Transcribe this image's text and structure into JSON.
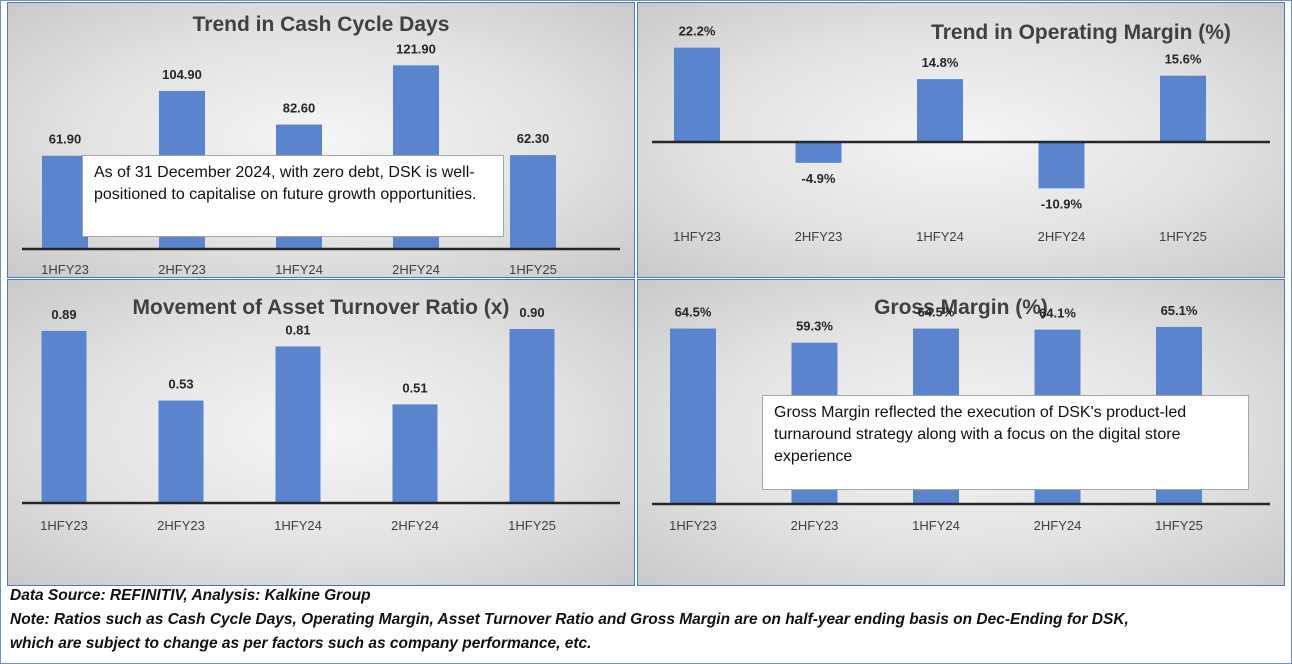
{
  "colors": {
    "bar": "#5b84cf",
    "axis": "#262626",
    "label": "#404040",
    "panel_border": "#4a78c8"
  },
  "chart_data": [
    {
      "type": "bar",
      "title": "Trend in Cash Cycle Days",
      "categories": [
        "1HFY23",
        "2HFY23",
        "1HFY24",
        "2HFY24",
        "1HFY25"
      ],
      "values": [
        61.9,
        104.9,
        82.6,
        121.9,
        62.3
      ],
      "data_labels": [
        "61.90",
        "104.90",
        "82.60",
        "121.90",
        "62.30"
      ],
      "ylim": [
        0,
        150
      ],
      "grid": false,
      "callout": "As of 31 December 2024, with zero debt, DSK is well-positioned to capitalise on future growth opportunities."
    },
    {
      "type": "bar",
      "title": "Trend in Operating Margin (%)",
      "categories": [
        "1HFY23",
        "2HFY23",
        "1HFY24",
        "2HFY24",
        "1HFY25"
      ],
      "values": [
        22.2,
        -4.9,
        14.8,
        -10.9,
        15.6
      ],
      "data_labels": [
        "22.2%",
        "-4.9%",
        "14.8%",
        "-10.9%",
        "15.6%"
      ],
      "ylim": [
        -30,
        28
      ],
      "grid": false
    },
    {
      "type": "bar",
      "title": "Movement of Asset Turnover Ratio (x)",
      "categories": [
        "1HFY23",
        "2HFY23",
        "1HFY24",
        "2HFY24",
        "1HFY25"
      ],
      "values": [
        0.89,
        0.53,
        0.81,
        0.51,
        0.9
      ],
      "data_labels": [
        "0.89",
        "0.53",
        "0.81",
        "0.51",
        "0.90"
      ],
      "ylim": [
        0,
        1.05
      ],
      "grid": false
    },
    {
      "type": "bar",
      "title": "Gross Margin (%)",
      "categories": [
        "1HFY23",
        "2HFY23",
        "1HFY24",
        "2HFY24",
        "1HFY25"
      ],
      "values": [
        64.5,
        59.3,
        64.5,
        64.1,
        65.1
      ],
      "data_labels": [
        "64.5%",
        "59.3%",
        "64.5%",
        "64.1%",
        "65.1%"
      ],
      "ylim": [
        0,
        75
      ],
      "grid": false,
      "callout": "Gross Margin reflected the execution of DSK's product-led turnaround strategy along with a focus on the digital store experience"
    }
  ],
  "footer": {
    "source": "Data Source: REFINITIV, Analysis: Kalkine Group",
    "note_line1": "Note: Ratios such as Cash Cycle Days, Operating Margin, Asset Turnover Ratio and Gross Margin are on half-year ending basis on Dec-Ending for DSK,",
    "note_line2": "which are subject to change as per factors such as company performance, etc."
  }
}
